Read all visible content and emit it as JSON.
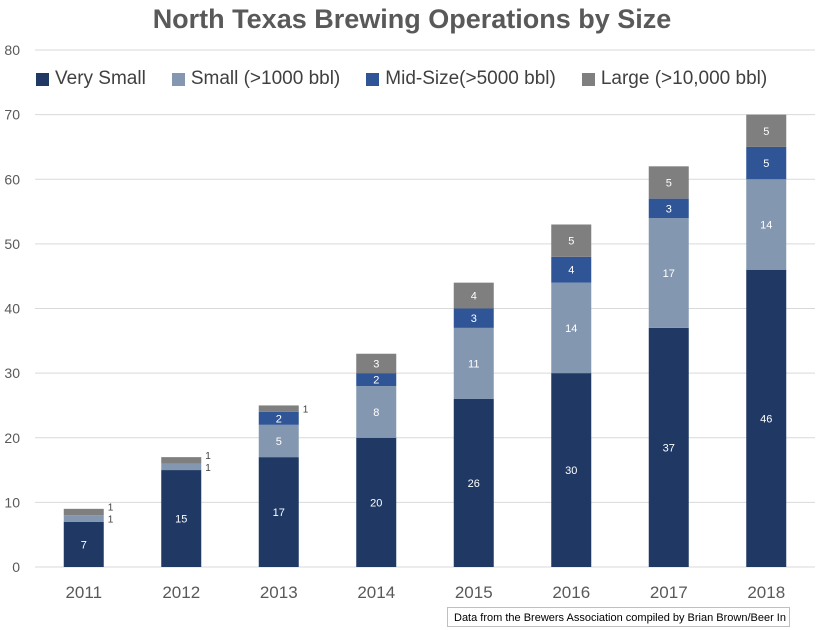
{
  "chart_data": {
    "type": "bar",
    "stacked": true,
    "title": "North Texas Brewing Operations by Size",
    "categories": [
      "2011",
      "2012",
      "2013",
      "2014",
      "2015",
      "2016",
      "2017",
      "2018"
    ],
    "series": [
      {
        "name": "Very Small",
        "color": "#1F3864",
        "values": [
          7,
          15,
          17,
          20,
          26,
          30,
          37,
          46
        ]
      },
      {
        "name": "Small (>1000 bbl)",
        "color": "#8497B0",
        "values": [
          1,
          1,
          5,
          8,
          11,
          14,
          17,
          14
        ]
      },
      {
        "name": "Mid-Size(>5000 bbl)",
        "color": "#2F5597",
        "values": [
          0,
          0,
          2,
          2,
          3,
          4,
          3,
          5
        ]
      },
      {
        "name": "Large (>10,000 bbl)",
        "color": "#7F7F7F",
        "values": [
          1,
          1,
          1,
          3,
          4,
          5,
          5,
          5
        ]
      }
    ],
    "ylim": [
      0,
      80
    ],
    "yticks": [
      0,
      10,
      20,
      30,
      40,
      50,
      60,
      70,
      80
    ],
    "grid": true,
    "legend": "top-left",
    "data_labels": true
  },
  "note": "Data from the Brewers Association compiled by Brian Brown/Beer In Big D."
}
